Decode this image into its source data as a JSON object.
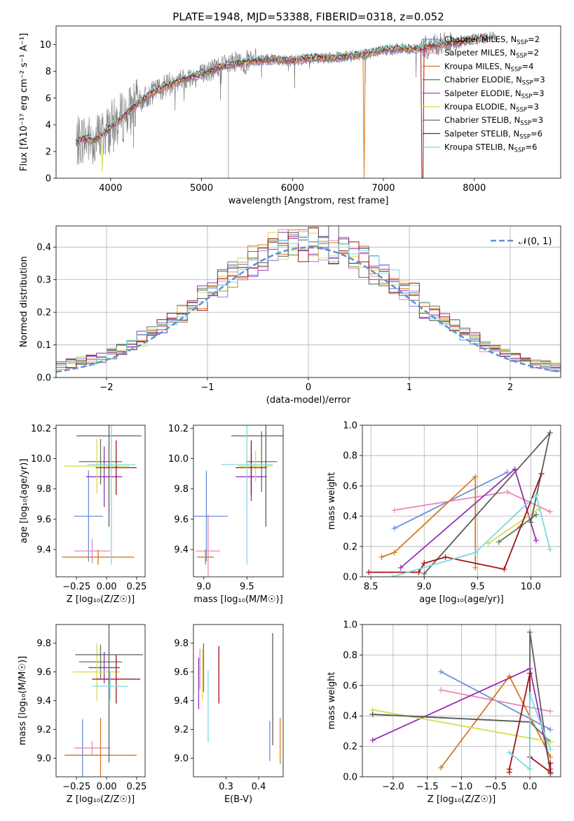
{
  "figure_title": "PLATE=1948, MJD=53388, FIBERID=0318, z=0.052",
  "colors": {
    "data": "#808080",
    "models": [
      "#6a8fdc",
      "#e889b8",
      "#d9781f",
      "#5b7a52",
      "#9431b3",
      "#d8dc4e",
      "#5c5c5c",
      "#a01414",
      "#7ed8e0"
    ],
    "gaussian": "#5f8fd6"
  },
  "chart_data": [
    {
      "type": "line",
      "title": "PLATE=1948, MJD=53388, FIBERID=0318, z=0.052",
      "xlabel": "wavelength [Angstrom, rest frame]",
      "ylabel": "Flux [fλ10⁻¹⁷ erg cm⁻² s⁻¹ A⁻¹]",
      "xlim": [
        3400,
        8950
      ],
      "ylim": [
        0,
        11.4
      ],
      "xticks": [
        "4000",
        "5000",
        "6000",
        "7000",
        "8000"
      ],
      "yticks": [
        "0",
        "2",
        "4",
        "6",
        "8",
        "10"
      ],
      "grid": false,
      "legend_position": "right",
      "series": [
        {
          "name": "Chabrier MILES, N",
          "sub": "SSP",
          "suffix": "=2"
        },
        {
          "name": "Salpeter MILES, N",
          "sub": "SSP",
          "suffix": "=2"
        },
        {
          "name": "Kroupa MILES, N",
          "sub": "SSP",
          "suffix": "=4"
        },
        {
          "name": "Chabrier ELODIE, N",
          "sub": "SSP",
          "suffix": "=3"
        },
        {
          "name": "Salpeter ELODIE, N",
          "sub": "SSP",
          "suffix": "=3"
        },
        {
          "name": "Kroupa ELODIE, N",
          "sub": "SSP",
          "suffix": "=3"
        },
        {
          "name": "Chabrier STELIB, N",
          "sub": "SSP",
          "suffix": "=3"
        },
        {
          "name": "Salpeter STELIB, N",
          "sub": "SSP",
          "suffix": "=6"
        },
        {
          "name": "Kroupa STELIB, N",
          "sub": "SSP",
          "suffix": "=6"
        }
      ],
      "continuum": {
        "x": [
          3620,
          3700,
          3800,
          3900,
          4000,
          4100,
          4200,
          4300,
          4400,
          4500,
          4600,
          4800,
          5000,
          5200,
          5400,
          5600,
          5800,
          6000,
          6200,
          6400,
          6600,
          6800,
          7000,
          7200,
          7400,
          7600,
          7800,
          8000,
          8200
        ],
        "y": [
          2.6,
          3.0,
          2.8,
          3.2,
          3.8,
          4.4,
          5.0,
          5.6,
          6.1,
          6.6,
          6.9,
          7.4,
          7.8,
          8.3,
          8.6,
          8.8,
          8.9,
          8.8,
          9.0,
          9.0,
          9.1,
          9.3,
          9.6,
          9.7,
          9.7,
          10.0,
          10.1,
          10.4,
          10.6
        ]
      }
    },
    {
      "type": "step",
      "xlabel": "(data-model)/error",
      "ylabel": "Normed distribution",
      "xlim": [
        -2.5,
        2.5
      ],
      "ylim": [
        0,
        0.465
      ],
      "xticks": [
        "−2",
        "−1",
        "0",
        "1",
        "2"
      ],
      "yticks": [
        "0.0",
        "0.1",
        "0.2",
        "0.3",
        "0.4"
      ],
      "grid": true,
      "legend_position": "upper right",
      "legend_label": "𝒩(0, 1)",
      "bin_width": 0.1,
      "bin_start": -2.5
    },
    {
      "type": "errorbar",
      "xlabel": "Z [log₁₀(Z/Z☉)]",
      "ylabel": "age  [log₁₀(age/yr)]",
      "xlim": [
        -0.42,
        0.32
      ],
      "ylim": [
        9.22,
        10.22
      ],
      "xticks": [
        "−0.25",
        "0.00",
        "0.25"
      ],
      "yticks": [
        "9.4",
        "9.6",
        "9.8",
        "10.0",
        "10.2"
      ],
      "points": [
        {
          "x": -0.15,
          "y": 9.62,
          "xerr": 0.12,
          "yerr": 0.3
        },
        {
          "x": -0.12,
          "y": 9.39,
          "xerr": 0.15,
          "yerr": 0.08
        },
        {
          "x": -0.07,
          "y": 9.35,
          "xerr": 0.3,
          "yerr": 0.05
        },
        {
          "x": -0.05,
          "y": 9.98,
          "xerr": 0.18,
          "yerr": 0.15
        },
        {
          "x": -0.02,
          "y": 9.88,
          "xerr": 0.15,
          "yerr": 0.2
        },
        {
          "x": -0.08,
          "y": 9.95,
          "xerr": 0.27,
          "yerr": 0.18
        },
        {
          "x": 0.02,
          "y": 10.15,
          "xerr": 0.27,
          "yerr": 0.6
        },
        {
          "x": 0.08,
          "y": 9.94,
          "xerr": 0.17,
          "yerr": 0.18
        },
        {
          "x": 0.04,
          "y": 9.96,
          "xerr": 0.2,
          "yerr": 0.66
        }
      ]
    },
    {
      "type": "errorbar",
      "xlabel": "mass [log₁₀(M/M☉)]",
      "xlim": [
        8.88,
        9.92
      ],
      "ylim": [
        9.22,
        10.22
      ],
      "xticks": [
        "9.0",
        "9.5"
      ],
      "yticks": [
        "9.4",
        "9.6",
        "9.8",
        "10.0",
        "10.2"
      ],
      "points": [
        {
          "x": 9.03,
          "y": 9.62,
          "xerr": 0.25,
          "yerr": 0.3
        },
        {
          "x": 9.05,
          "y": 9.39,
          "xerr": 0.14,
          "yerr": 0.24
        },
        {
          "x": 9.02,
          "y": 9.35,
          "xerr": 0.1,
          "yerr": 0.05
        },
        {
          "x": 9.67,
          "y": 9.98,
          "xerr": 0.18,
          "yerr": 0.2
        },
        {
          "x": 9.55,
          "y": 9.88,
          "xerr": 0.18,
          "yerr": 0.16
        },
        {
          "x": 9.6,
          "y": 9.95,
          "xerr": 0.2,
          "yerr": 0.1
        },
        {
          "x": 9.72,
          "y": 10.15,
          "xerr": 0.4,
          "yerr": 0.6
        },
        {
          "x": 9.55,
          "y": 9.94,
          "xerr": 0.18,
          "yerr": 0.18
        },
        {
          "x": 9.5,
          "y": 9.96,
          "xerr": 0.3,
          "yerr": 0.66
        }
      ]
    },
    {
      "type": "line",
      "xlabel": "age  [log₁₀(age/yr)]",
      "ylabel": "mass weight",
      "xlim": [
        8.42,
        10.28
      ],
      "ylim": [
        0,
        1
      ],
      "xticks": [
        "8.5",
        "9.0",
        "9.5",
        "10.0"
      ],
      "yticks": [
        "0.0",
        "0.2",
        "0.4",
        "0.6",
        "0.8",
        "1.0"
      ],
      "grid": true,
      "series": [
        {
          "x": [
            8.72,
            9.78
          ],
          "y": [
            0.32,
            0.69
          ]
        },
        {
          "x": [
            8.72,
            9.78,
            10.18
          ],
          "y": [
            0.44,
            0.56,
            0.43
          ]
        },
        {
          "x": [
            8.6,
            8.72,
            9.48,
            9.48
          ],
          "y": [
            0.13,
            0.16,
            0.66,
            0.06
          ]
        },
        {
          "x": [
            9.7,
            9.9,
            10.05
          ],
          "y": [
            0.23,
            0.33,
            0.41
          ]
        },
        {
          "x": [
            8.78,
            9.85,
            10.05
          ],
          "y": [
            0.06,
            0.71,
            0.24
          ]
        },
        {
          "x": [
            9.6,
            10.08
          ],
          "y": [
            0.22,
            0.45
          ]
        },
        {
          "x": [
            9.0,
            10.18,
            10.0
          ],
          "y": [
            0.02,
            0.95,
            0.36
          ]
        },
        {
          "x": [
            8.48,
            8.95,
            9.0,
            9.2,
            9.75,
            10.1
          ],
          "y": [
            0.03,
            0.03,
            0.09,
            0.13,
            0.05,
            0.68
          ]
        },
        {
          "x": [
            8.7,
            9.48,
            10.05,
            10.18
          ],
          "y": [
            0.0,
            0.16,
            0.54,
            0.18
          ]
        }
      ]
    },
    {
      "type": "errorbar",
      "xlabel": "Z [log₁₀(Z/Z☉)]",
      "ylabel": "mass [log₁₀(M/M☉)]",
      "xlim": [
        -0.42,
        0.32
      ],
      "ylim": [
        8.87,
        9.93
      ],
      "xticks": [
        "−0.25",
        "0.00",
        "0.25"
      ],
      "yticks": [
        "9.0",
        "9.2",
        "9.4",
        "9.6",
        "9.8"
      ],
      "points": [
        {
          "x": -0.2,
          "y": 9.02,
          "xerr": 0.15,
          "yerr": 0.25
        },
        {
          "x": -0.12,
          "y": 9.07,
          "xerr": 0.15,
          "yerr": 0.05
        },
        {
          "x": -0.05,
          "y": 9.02,
          "xerr": 0.3,
          "yerr": 0.26
        },
        {
          "x": -0.05,
          "y": 9.67,
          "xerr": 0.18,
          "yerr": 0.12
        },
        {
          "x": -0.02,
          "y": 9.63,
          "xerr": 0.13,
          "yerr": 0.11
        },
        {
          "x": -0.08,
          "y": 9.6,
          "xerr": 0.2,
          "yerr": 0.2
        },
        {
          "x": 0.02,
          "y": 9.72,
          "xerr": 0.28,
          "yerr": 0.75
        },
        {
          "x": 0.08,
          "y": 9.55,
          "xerr": 0.2,
          "yerr": 0.17
        },
        {
          "x": 0.03,
          "y": 9.5,
          "xerr": 0.15,
          "yerr": 0.1
        }
      ]
    },
    {
      "type": "errorbar",
      "xlabel": "E(B-V)",
      "xlim": [
        0.2,
        0.475
      ],
      "ylim": [
        8.87,
        9.93
      ],
      "xticks": [
        "0.3",
        "0.4"
      ],
      "yticks": [
        "9.0",
        "9.2",
        "9.4",
        "9.6",
        "9.8"
      ],
      "points": [
        {
          "x": 0.434,
          "y": 9.12,
          "xerr": 0,
          "yerr": 0.14
        },
        {
          "x": 0.22,
          "y": 9.62,
          "xerr": 0,
          "yerr": 0.14
        },
        {
          "x": 0.466,
          "y": 9.12,
          "xerr": 0,
          "yerr": 0.16
        },
        {
          "x": 0.231,
          "y": 9.63,
          "xerr": 0,
          "yerr": 0.17
        },
        {
          "x": 0.216,
          "y": 9.52,
          "xerr": 0,
          "yerr": 0.18
        },
        {
          "x": 0.228,
          "y": 9.58,
          "xerr": 0,
          "yerr": 0.18
        },
        {
          "x": 0.443,
          "y": 9.48,
          "xerr": 0,
          "yerr": 0.39
        },
        {
          "x": 0.278,
          "y": 9.58,
          "xerr": 0,
          "yerr": 0.2
        },
        {
          "x": 0.245,
          "y": 9.36,
          "xerr": 0,
          "yerr": 0.25
        }
      ]
    },
    {
      "type": "line",
      "xlabel": "Z [log₁₀(Z/Z☉)]",
      "ylabel": "mass weight",
      "xlim": [
        -2.45,
        0.45
      ],
      "ylim": [
        0,
        1
      ],
      "xticks": [
        "−2.0",
        "−1.5",
        "−1.0",
        "−0.5",
        "0.0"
      ],
      "yticks": [
        "0.0",
        "0.2",
        "0.4",
        "0.6",
        "0.8",
        "1.0"
      ],
      "grid": true,
      "series": [
        {
          "x": [
            -1.3,
            0.3
          ],
          "y": [
            0.69,
            0.31
          ]
        },
        {
          "x": [
            -1.3,
            0.3
          ],
          "y": [
            0.57,
            0.43
          ]
        },
        {
          "x": [
            -1.3,
            -0.3,
            0.3
          ],
          "y": [
            0.06,
            0.66,
            0.13
          ]
        },
        {
          "x": [
            -2.3,
            0.0,
            0.3
          ],
          "y": [
            0.41,
            0.36,
            0.23
          ]
        },
        {
          "x": [
            -2.3,
            0.0,
            0.3
          ],
          "y": [
            0.24,
            0.71,
            0.05
          ]
        },
        {
          "x": [
            -2.3,
            0.3
          ],
          "y": [
            0.44,
            0.23
          ]
        },
        {
          "x": [
            -2.3,
            0.0,
            0.0,
            0.3
          ],
          "y": [
            0.41,
            0.36,
            0.95,
            0.02
          ]
        },
        {
          "x": [
            -0.3,
            -0.3,
            0.0,
            0.0,
            0.3,
            0.3
          ],
          "y": [
            0.03,
            0.05,
            0.68,
            0.13,
            0.03,
            0.09
          ]
        },
        {
          "x": [
            -0.3,
            0.0,
            0.0,
            0.3
          ],
          "y": [
            0.16,
            0.05,
            0.54,
            0.18
          ]
        }
      ]
    }
  ]
}
